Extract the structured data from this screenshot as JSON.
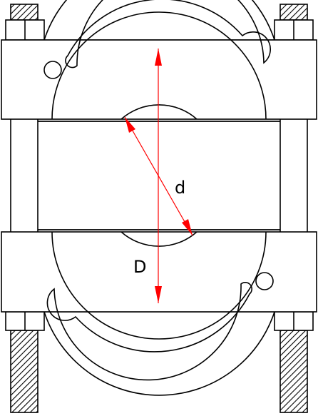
{
  "diagram": {
    "labels": {
      "inner_diameter": "d",
      "outer_diameter": "D"
    },
    "colors": {
      "outline": "#000000",
      "dimension": "#ff0000",
      "background": "#ffffff"
    }
  }
}
